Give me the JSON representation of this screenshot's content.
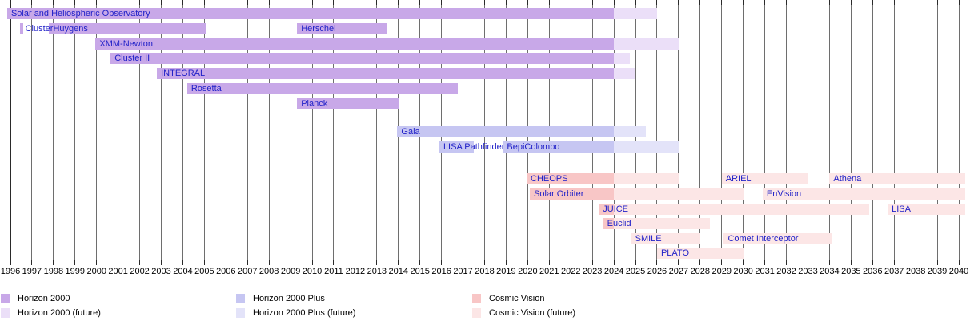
{
  "chart_data": {
    "type": "bar",
    "subtype": "gantt-timeline",
    "title": "",
    "xlabel": "",
    "ylabel": "",
    "x_axis": {
      "min": 1996,
      "max": 2040,
      "tick_step": 1,
      "tick_labels": [
        "1996",
        "1997",
        "1998",
        "1999",
        "2000",
        "2001",
        "2002",
        "2003",
        "2004",
        "2005",
        "2006",
        "2007",
        "2008",
        "2009",
        "2010",
        "2011",
        "2012",
        "2013",
        "2014",
        "2015",
        "2016",
        "2017",
        "2018",
        "2019",
        "2020",
        "2021",
        "2022",
        "2023",
        "2024",
        "2025",
        "2026",
        "2027",
        "2028",
        "2029",
        "2030",
        "2031",
        "2032",
        "2033",
        "2034",
        "2035",
        "2036",
        "2037",
        "2038",
        "2039",
        "2040"
      ]
    },
    "grid": "vertical-yearly",
    "present_boundary_year": 2024,
    "programs": {
      "horizon2000": {
        "solid": "#c8a8e8",
        "future": "#ebdff8"
      },
      "horizon2000plus": {
        "solid": "#c6c6f2",
        "future": "#e3e3f9"
      },
      "cosmicvision": {
        "solid": "#f8c6c6",
        "future": "#fce6e6"
      }
    },
    "rows": [
      {
        "missions": [
          {
            "name": "Solar and Heliospheric Observatory",
            "program": "horizon2000",
            "start": 1995.85,
            "end": 2026.0
          }
        ]
      },
      {
        "missions": [
          {
            "name": "Cluster",
            "program": "horizon2000",
            "start": 1996.45,
            "end": 1996.58,
            "label_outside": true
          },
          {
            "name": "Huygens",
            "program": "horizon2000",
            "start": 1997.8,
            "end": 2005.1
          },
          {
            "name": "Herschel",
            "program": "horizon2000",
            "start": 2009.3,
            "end": 2013.45
          }
        ]
      },
      {
        "missions": [
          {
            "name": "XMM-Newton",
            "program": "horizon2000",
            "start": 1999.95,
            "end": 2027.0
          }
        ]
      },
      {
        "missions": [
          {
            "name": "Cluster II",
            "program": "horizon2000",
            "start": 2000.65,
            "end": 2024.75
          }
        ]
      },
      {
        "missions": [
          {
            "name": "INTEGRAL",
            "program": "horizon2000",
            "start": 2002.8,
            "end": 2025.0
          }
        ]
      },
      {
        "missions": [
          {
            "name": "Rosetta",
            "program": "horizon2000",
            "start": 2004.2,
            "end": 2016.75
          }
        ]
      },
      {
        "missions": [
          {
            "name": "Planck",
            "program": "horizon2000",
            "start": 2009.3,
            "end": 2014.0
          }
        ]
      },
      {
        "missions": [
          {
            "name": "Gaia",
            "program": "horizon2000plus",
            "start": 2013.95,
            "end": 2025.5
          }
        ]
      },
      {
        "missions": [
          {
            "name": "LISA Pathfinder",
            "program": "horizon2000plus",
            "start": 2015.9,
            "end": 2017.5
          },
          {
            "name": "BepiColombo",
            "program": "horizon2000plus",
            "start": 2018.85,
            "end": 2027.0
          }
        ]
      },
      {
        "missions": [
          {
            "name": "CHEOPS",
            "program": "cosmicvision",
            "start": 2019.95,
            "end": 2027.0
          },
          {
            "name": "ARIEL",
            "program": "cosmicvision",
            "start": 2029.0,
            "end": 2033.0
          },
          {
            "name": "Athena",
            "program": "cosmicvision",
            "start": 2034.0,
            "end": 2040.3
          }
        ]
      },
      {
        "missions": [
          {
            "name": "Solar Orbiter",
            "program": "cosmicvision",
            "start": 2020.1,
            "end": 2030.0
          },
          {
            "name": "EnVision",
            "program": "cosmicvision",
            "start": 2030.9,
            "end": 2040.3
          }
        ]
      },
      {
        "missions": [
          {
            "name": "JUICE",
            "program": "cosmicvision",
            "start": 2023.3,
            "end": 2035.85
          },
          {
            "name": "LISA",
            "program": "cosmicvision",
            "start": 2036.7,
            "end": 2040.3
          }
        ]
      },
      {
        "missions": [
          {
            "name": "Euclid",
            "program": "cosmicvision",
            "start": 2023.5,
            "end": 2028.45
          }
        ]
      },
      {
        "missions": [
          {
            "name": "SMILE",
            "program": "cosmicvision",
            "start": 2024.8,
            "end": 2028.0
          },
          {
            "name": "Comet Interceptor",
            "program": "cosmicvision",
            "start": 2029.1,
            "end": 2034.1
          }
        ]
      },
      {
        "missions": [
          {
            "name": "PLATO",
            "program": "cosmicvision",
            "start": 2026.0,
            "end": 2030.0
          }
        ]
      }
    ],
    "legend": [
      {
        "label": "Horizon 2000",
        "color": "#c8a8e8"
      },
      {
        "label": "Horizon 2000 (future)",
        "color": "#ebdff8"
      },
      {
        "label": "Horizon 2000 Plus",
        "color": "#c6c6f2"
      },
      {
        "label": "Horizon 2000 Plus (future)",
        "color": "#e3e3f9"
      },
      {
        "label": "Cosmic Vision",
        "color": "#f8c6c6"
      },
      {
        "label": "Cosmic Vision (future)",
        "color": "#fce6e6"
      }
    ],
    "legend_position": "bottom",
    "colors": {
      "gridline": "#6e6e6e",
      "axis": "#2a2a2a",
      "mission_label": "#2121c8",
      "tick_label": "#000000",
      "background": "#ffffff"
    }
  }
}
